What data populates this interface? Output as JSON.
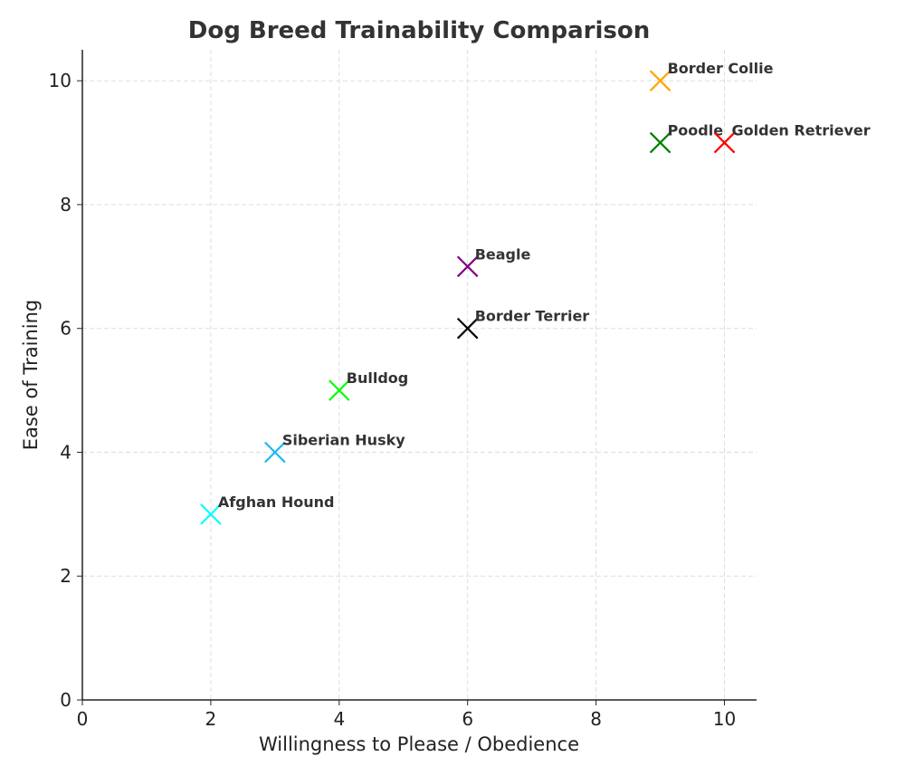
{
  "chart_data": {
    "type": "scatter",
    "title": "Dog Breed Trainability Comparison",
    "xlabel": "Willingness to Please / Obedience",
    "ylabel": "Ease of Training",
    "xlim": [
      0,
      10.5
    ],
    "ylim": [
      0,
      10.5
    ],
    "xticks": [
      0,
      2,
      4,
      6,
      8,
      10
    ],
    "yticks": [
      0,
      2,
      4,
      6,
      8,
      10
    ],
    "grid": true,
    "marker": "x",
    "points": [
      {
        "name": "Border Collie",
        "x": 9,
        "y": 10,
        "color": "#ffa500"
      },
      {
        "name": "Poodle",
        "x": 9,
        "y": 9,
        "color": "#008000"
      },
      {
        "name": "Golden Retriever",
        "x": 10,
        "y": 9,
        "color": "#ff0000"
      },
      {
        "name": "Beagle",
        "x": 6,
        "y": 7,
        "color": "#800080"
      },
      {
        "name": "Border Terrier",
        "x": 6,
        "y": 6,
        "color": "#000000"
      },
      {
        "name": "Bulldog",
        "x": 4,
        "y": 5,
        "color": "#00ff00"
      },
      {
        "name": "Siberian Husky",
        "x": 3,
        "y": 4,
        "color": "#1db9f0"
      },
      {
        "name": "Afghan Hound",
        "x": 2,
        "y": 3,
        "color": "#00ffff"
      }
    ]
  }
}
